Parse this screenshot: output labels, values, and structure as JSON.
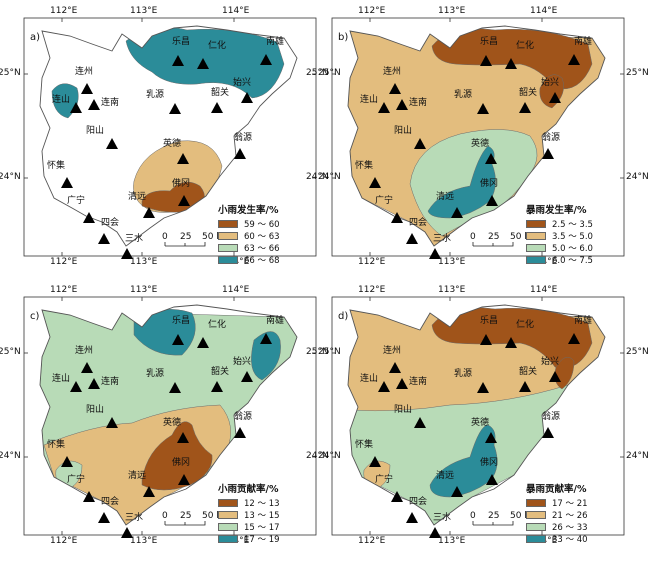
{
  "figure_caption": "",
  "stations": [
    "乐昌",
    "仁化",
    "南雄",
    "始兴",
    "韶关",
    "乳源",
    "连州",
    "连山",
    "连南",
    "阳山",
    "英德",
    "翁源",
    "怀集",
    "广宁",
    "四会",
    "清远",
    "佛冈",
    "三水"
  ],
  "axes": {
    "x_ticks": [
      "112°E",
      "113°E",
      "114°E"
    ],
    "y_ticks": [
      "25°N",
      "24°N"
    ]
  },
  "scale_bar": {
    "labels": [
      "0",
      "25",
      "50 km"
    ]
  },
  "panels": [
    {
      "id": "a",
      "label": "a)",
      "legend_title": "小雨发生率/%",
      "colors": [
        "#a0541a",
        "#e3bd7e",
        "#b8dbb7",
        "#2b8c99"
      ],
      "classes": [
        "59 ～ 60",
        "60 ～ 63",
        "63 ～ 66",
        "66 ～ 68"
      ]
    },
    {
      "id": "b",
      "label": "b)",
      "legend_title": "暴雨发生率/%",
      "colors": [
        "#a0541a",
        "#e3bd7e",
        "#b8dbb7",
        "#2b8c99"
      ],
      "classes": [
        "2.5 ～ 3.5",
        "3.5 ～ 5.0",
        "5.0 ～ 6.0",
        "6.0 ～ 7.5"
      ]
    },
    {
      "id": "c",
      "label": "c)",
      "legend_title": "小雨贡献率/%",
      "colors": [
        "#a0541a",
        "#e3bd7e",
        "#b8dbb7",
        "#2b8c99"
      ],
      "classes": [
        "12 ～ 13",
        "13 ～ 15",
        "15 ～ 17",
        "17 ～ 19"
      ]
    },
    {
      "id": "d",
      "label": "d)",
      "legend_title": "暴雨贡献率/%",
      "colors": [
        "#a0541a",
        "#e3bd7e",
        "#b8dbb7",
        "#2b8c99"
      ],
      "classes": [
        "17 ～ 21",
        "21 ～ 26",
        "26 ～ 33",
        "33 ～ 40"
      ]
    }
  ]
}
